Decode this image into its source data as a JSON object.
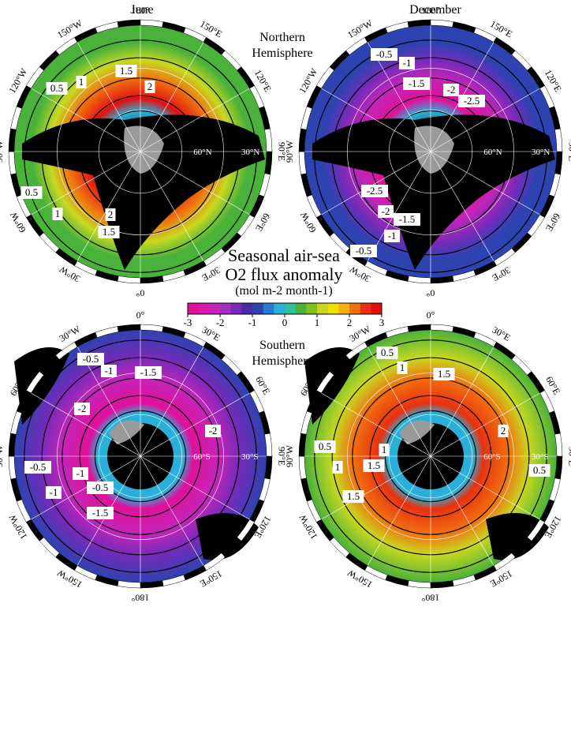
{
  "figure": {
    "title_lines": [
      "Seasonal air-sea",
      "O2 flux anomaly"
    ],
    "units": "(mol m-2 month-1)",
    "hemisphere_labels": {
      "north": [
        "Northern",
        "Hemisphere"
      ],
      "south": [
        "Southern",
        "Hemisphere"
      ]
    },
    "months": [
      "June",
      "December"
    ]
  },
  "colorbar": {
    "min": -3,
    "max": 3,
    "tick_labels": [
      "-3",
      "-2",
      "-1",
      "0",
      "1",
      "2",
      "3"
    ],
    "colors": [
      "#e0109a",
      "#d81aa8",
      "#c425b8",
      "#a22fc0",
      "#7a2ab8",
      "#4d2aa8",
      "#2d43b0",
      "#2a7ad0",
      "#2ab0d8",
      "#30c0a0",
      "#4ab23a",
      "#80c020",
      "#c8d820",
      "#f0e000",
      "#f8b010",
      "#f07010",
      "#e83010",
      "#e01010"
    ]
  },
  "maps": [
    {
      "id": "june-north",
      "month": "June",
      "hemisphere": "north",
      "lon_labels": [
        "180°",
        "150°E",
        "120°E",
        "90°E",
        "60°E",
        "30°E",
        "0°",
        "30°W",
        "60°W",
        "90°W",
        "120°W",
        "150°W"
      ],
      "lat_labels": [
        "60°N",
        "30°N"
      ],
      "contour_labels": [
        "0.5",
        "1",
        "1.5",
        "2",
        "0.5",
        "1",
        "2",
        "1.5"
      ],
      "colors": {
        "outer": "#4ab23a",
        "mid": "#c8d820",
        "inner": "#f07010",
        "core": "#e01010",
        "polar": "#2ab0d8"
      }
    },
    {
      "id": "december-north",
      "month": "December",
      "hemisphere": "north",
      "lon_labels": [
        "180°",
        "150°E",
        "120°E",
        "90°E",
        "60°E",
        "30°E",
        "0°",
        "30°W",
        "60°W",
        "90°W",
        "120°W",
        "150°W"
      ],
      "lat_labels": [
        "60°N",
        "30°N"
      ],
      "contour_labels": [
        "-0.5",
        "-1",
        "-1.5",
        "-2",
        "-2.5",
        "-2.5",
        "-2",
        "-1.5",
        "-1",
        "-0.5"
      ],
      "colors": {
        "outer": "#2d43b0",
        "mid": "#7a2ab8",
        "inner": "#c425b8",
        "core": "#e0109a",
        "polar": "#2ab0d8"
      }
    },
    {
      "id": "june-south",
      "month": "June",
      "hemisphere": "south",
      "lon_labels": [
        "0°",
        "30°E",
        "60°E",
        "90°E",
        "120°E",
        "150°E",
        "180°",
        "150°W",
        "120°W",
        "90°W",
        "60°W",
        "30°W"
      ],
      "lat_labels": [
        "60°S",
        "30°S"
      ],
      "contour_labels": [
        "-0.5",
        "-1",
        "-1.5",
        "-2",
        "-2",
        "-0.5",
        "-1",
        "-1",
        "-0.5",
        "-1.5"
      ],
      "colors": {
        "outer": "#2d43b0",
        "mid": "#7a2ab8",
        "inner": "#c425b8",
        "core": "#e0109a",
        "polar": "#2ab0d8"
      }
    },
    {
      "id": "december-south",
      "month": "December",
      "hemisphere": "south",
      "lon_labels": [
        "0°",
        "30°E",
        "60°E",
        "90°E",
        "120°E",
        "150°E",
        "180°",
        "150°W",
        "120°W",
        "90°W",
        "60°W",
        "30°W"
      ],
      "lat_labels": [
        "60°S",
        "30°S"
      ],
      "contour_labels": [
        "0.5",
        "1",
        "1.5",
        "2",
        "0.5",
        "1",
        "1.5",
        "1",
        "1.5",
        "0.5"
      ],
      "colors": {
        "outer": "#4ab23a",
        "mid": "#c8d820",
        "inner": "#f07010",
        "core": "#e83010",
        "polar": "#2ab0d8"
      }
    }
  ]
}
